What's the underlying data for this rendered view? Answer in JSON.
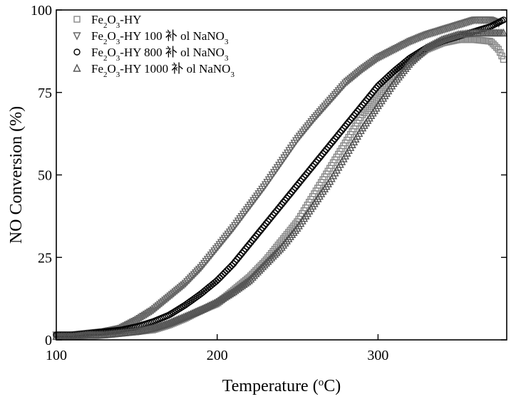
{
  "chart_data": {
    "type": "scatter",
    "title": "",
    "xlabel": "Temperature (",
    "xlabel_sup": "o",
    "xlabel_end": "C)",
    "ylabel": "NO Conversion (%)",
    "xlim": [
      100,
      380
    ],
    "ylim": [
      0,
      100
    ],
    "xticks": [
      100,
      200,
      300
    ],
    "yticks": [
      0,
      25,
      50,
      75,
      100
    ],
    "grid": false,
    "legend_position": "top-left",
    "series": [
      {
        "name": "Fe2O3-HY",
        "legend": {
          "a": "Fe",
          "s1": "2",
          "b": "O",
          "s2": "3",
          "c": "-HY",
          "s3": ""
        },
        "marker": "square",
        "color": "#888888",
        "x": [
          100,
          110,
          120,
          130,
          140,
          150,
          160,
          170,
          180,
          190,
          200,
          210,
          220,
          230,
          240,
          250,
          260,
          270,
          280,
          290,
          300,
          310,
          320,
          330,
          340,
          350,
          360,
          370,
          375,
          378
        ],
        "y": [
          1,
          1,
          1,
          1.5,
          2,
          2.5,
          3,
          4.5,
          6.5,
          9,
          11,
          15,
          19,
          24,
          30,
          36,
          44,
          52,
          60,
          68,
          74,
          80,
          84.5,
          88,
          90,
          91,
          91,
          90.5,
          88,
          85
        ]
      },
      {
        "name": "Fe2O3-HY 100 补 ol NaNO3",
        "legend": {
          "a": "Fe",
          "s1": "2",
          "b": "O",
          "s2": "3",
          "c": "-HY 100 补 ol NaNO",
          "s3": "3"
        },
        "marker": "triangle-down",
        "color": "#666666",
        "x": [
          100,
          110,
          120,
          130,
          140,
          150,
          160,
          170,
          180,
          190,
          200,
          210,
          220,
          230,
          240,
          250,
          260,
          270,
          280,
          290,
          300,
          310,
          320,
          330,
          340,
          350,
          360,
          370,
          375
        ],
        "y": [
          1.5,
          1.5,
          2,
          2.5,
          3.5,
          6,
          9,
          13,
          17,
          22,
          28,
          34,
          40.5,
          47,
          54,
          61,
          67,
          72.5,
          78,
          82,
          85.5,
          88,
          90.5,
          92.5,
          94,
          95.5,
          97,
          97,
          96
        ]
      },
      {
        "name": "Fe2O3-HY 800 补 ol NaNO3",
        "legend": {
          "a": "Fe",
          "s1": "2",
          "b": "O",
          "s2": "3",
          "c": "-HY 800 补 ol NaNO",
          "s3": "3"
        },
        "marker": "circle",
        "color": "#000000",
        "x": [
          100,
          110,
          120,
          130,
          140,
          150,
          160,
          170,
          180,
          190,
          200,
          210,
          220,
          230,
          240,
          250,
          260,
          270,
          280,
          290,
          300,
          310,
          320,
          330,
          340,
          350,
          360,
          370,
          378
        ],
        "y": [
          1.5,
          1.5,
          2,
          2.5,
          3,
          4,
          5.5,
          7.5,
          10.5,
          14,
          18,
          23,
          29,
          35,
          41,
          47,
          53,
          59,
          65,
          71,
          77,
          81.5,
          85.5,
          88.5,
          90.5,
          92,
          93.5,
          95,
          97
        ]
      },
      {
        "name": "Fe2O3-HY 1000 补 ol NaNO3",
        "legend": {
          "a": "Fe",
          "s1": "2",
          "b": "O",
          "s2": "3",
          "c": "-HY 1000 补 ol NaNO",
          "s3": "3"
        },
        "marker": "triangle-up",
        "color": "#555555",
        "x": [
          100,
          110,
          120,
          130,
          140,
          150,
          160,
          170,
          180,
          190,
          200,
          210,
          220,
          230,
          240,
          250,
          260,
          270,
          280,
          290,
          300,
          310,
          320,
          330,
          340,
          350,
          360,
          370,
          378
        ],
        "y": [
          1,
          1,
          1.5,
          1.5,
          2,
          2.5,
          3.5,
          5,
          7,
          9,
          11.5,
          14.5,
          18,
          23,
          28,
          34,
          41,
          48,
          56,
          64,
          71,
          78,
          84,
          88.5,
          91,
          92.5,
          93,
          93,
          93
        ]
      }
    ]
  }
}
